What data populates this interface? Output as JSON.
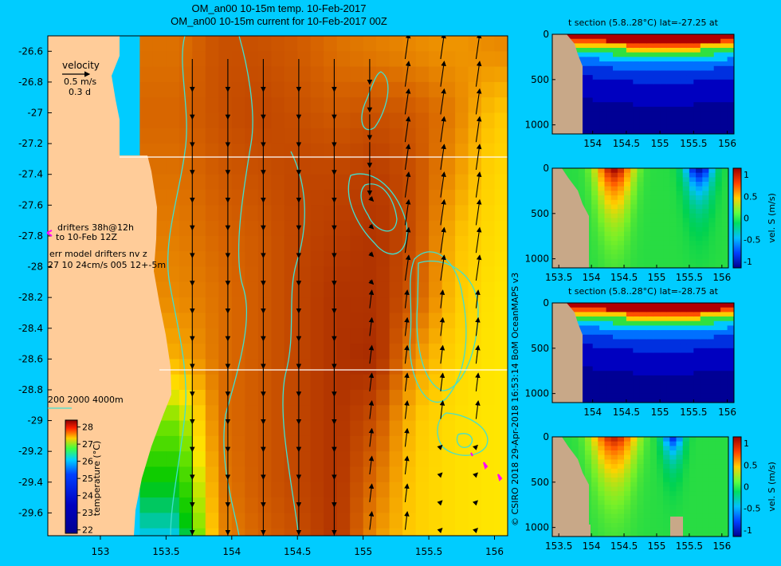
{
  "titles": {
    "line1": "OM_an00 10-15m temp. 10-Feb-2017",
    "line2": "OM_an00 10-15m current for 10-Feb-2017 00Z"
  },
  "credit": "© CSIRO 2018  29-Apr-2018 16:53:14 BoM OceanMAPS v3",
  "main_map": {
    "x_ticks": [
      "153",
      "153.5",
      "154",
      "154.5",
      "155",
      "155.5",
      "156"
    ],
    "y_ticks": [
      "-26.6",
      "-26.8",
      "-27",
      "-27.2",
      "-27.4",
      "-27.6",
      "-27.8",
      "-28",
      "-28.2",
      "-28.4",
      "-28.6",
      "-28.8",
      "-29",
      "-29.2",
      "-29.4",
      "-29.6"
    ],
    "section_lines_lat": [
      -27.25,
      -28.75
    ],
    "velocity_legend": {
      "label": "velocity",
      "speed": "0.5 m/s",
      "time": "0.3 d"
    },
    "drifter_legend": {
      "line1": "drifters 38h@12h",
      "line2": "to 10-Feb 12Z",
      "color": "#ff00ff"
    },
    "err_model": {
      "line1": "err model drifters nv z",
      "line2": "27 10 24cm/s 005 12+-5m"
    },
    "contour_legend": "200  2000  4000m",
    "colorbar": {
      "label": "temperature (°C)",
      "ticks": [
        "28",
        "27",
        "26",
        "25",
        "24",
        "23",
        "22"
      ]
    }
  },
  "panels": [
    {
      "title": "t section (5.8..28°C) lat=-27.25 at",
      "x_ticks": [
        "154",
        "154.5",
        "155",
        "155.5",
        "156"
      ],
      "y_ticks": [
        "0",
        "500",
        "1000"
      ]
    },
    {
      "title": "",
      "x_ticks": [
        "153.5",
        "154",
        "154.5",
        "155",
        "155.5",
        "156"
      ],
      "y_ticks": [
        "0",
        "500",
        "1000"
      ],
      "cbar_label": "vel. S (m/s)",
      "cbar_ticks": [
        "1",
        "0.5",
        "0",
        "-0.5",
        "-1"
      ]
    },
    {
      "title": "t section (5.8..28°C) lat=-28.75 at",
      "x_ticks": [
        "154",
        "154.5",
        "155",
        "155.5",
        "156"
      ],
      "y_ticks": [
        "0",
        "500",
        "1000"
      ]
    },
    {
      "title": "",
      "x_ticks": [
        "153.5",
        "154",
        "154.5",
        "155",
        "155.5",
        "156"
      ],
      "y_ticks": [
        "0",
        "500",
        "1000"
      ],
      "cbar_label": "vel. S (m/s)",
      "cbar_ticks": [
        "1",
        "0.5",
        "0",
        "-0.5",
        "-1"
      ]
    }
  ],
  "colors": {
    "background": "#00ccff",
    "land": "#ffcc99",
    "section_land": "#c8a888",
    "contour": "#40e0d0"
  },
  "chart_data": [
    {
      "type": "heatmap",
      "title": "OM_an00 10-15m temp. 10-Feb-2017",
      "xlim": [
        152.6,
        156.1
      ],
      "ylim": [
        -29.8,
        -26.5
      ],
      "colorbar_range": [
        22,
        28.5
      ],
      "colorbar_unit": "°C",
      "temperature_field_rows_lat": [
        -26.6,
        -27.0,
        -27.4,
        -27.8,
        -28.2,
        -28.6,
        -29.0,
        -29.4,
        -29.8
      ],
      "temperature_field_cols_lon": [
        153.6,
        153.9,
        154.2,
        154.5,
        154.8,
        155.1,
        155.4,
        155.7,
        156.0
      ],
      "temperature_field": [
        [
          27.3,
          27.6,
          27.6,
          27.5,
          27.3,
          27.2,
          27.1,
          27.0,
          27.1
        ],
        [
          27.4,
          27.6,
          27.7,
          27.6,
          27.5,
          27.6,
          27.5,
          27.2,
          26.6
        ],
        [
          27.3,
          27.5,
          27.6,
          27.7,
          27.7,
          27.8,
          27.6,
          27.0,
          26.4
        ],
        [
          27.2,
          27.4,
          27.5,
          27.7,
          27.8,
          27.9,
          27.6,
          26.7,
          26.3
        ],
        [
          27.1,
          27.3,
          27.5,
          27.7,
          27.9,
          27.9,
          27.5,
          26.6,
          26.2
        ],
        [
          26.8,
          27.3,
          27.5,
          27.7,
          27.9,
          28.0,
          27.0,
          26.4,
          26.2
        ],
        [
          25.6,
          27.3,
          27.5,
          27.7,
          27.9,
          27.6,
          26.6,
          26.3,
          26.2
        ],
        [
          24.8,
          27.2,
          27.5,
          27.7,
          27.9,
          27.3,
          26.5,
          26.3,
          26.2
        ],
        [
          24.0,
          27.1,
          27.4,
          27.6,
          27.9,
          27.0,
          26.5,
          26.3,
          26.2
        ]
      ],
      "velocity_reference_speed_ms": 0.5
    },
    {
      "type": "heatmap",
      "title": "t section (5.8..28°C) lat=-27.25 at",
      "xlim": [
        153.4,
        156.1
      ],
      "ylim": [
        1100,
        0
      ],
      "value_range": [
        5.8,
        28
      ]
    },
    {
      "type": "heatmap",
      "xlim": [
        153.4,
        156.1
      ],
      "ylim": [
        1100,
        0
      ],
      "colorbar_label": "vel. S (m/s)",
      "colorbar_range": [
        -1,
        1
      ]
    },
    {
      "type": "heatmap",
      "title": "t section (5.8..28°C) lat=-28.75 at",
      "xlim": [
        153.4,
        156.1
      ],
      "ylim": [
        1100,
        0
      ],
      "value_range": [
        5.8,
        28
      ]
    },
    {
      "type": "heatmap",
      "xlim": [
        153.4,
        156.1
      ],
      "ylim": [
        1100,
        0
      ],
      "colorbar_label": "vel. S (m/s)",
      "colorbar_range": [
        -1,
        1
      ]
    }
  ]
}
